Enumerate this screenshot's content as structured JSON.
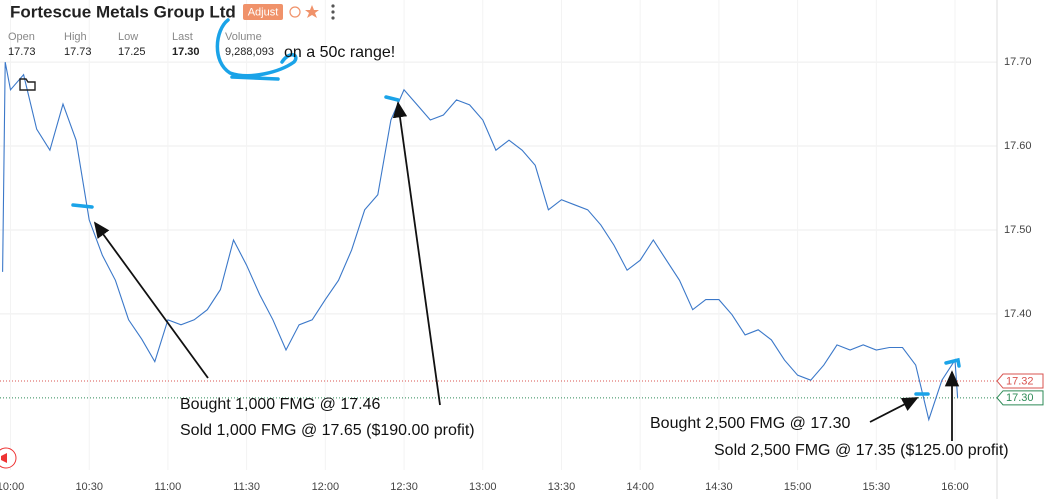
{
  "header": {
    "title": "Fortescue Metals Group Ltd",
    "button": "Adjust",
    "stats": [
      {
        "label": "Open",
        "value": "17.73"
      },
      {
        "label": "High",
        "value": "17.73"
      },
      {
        "label": "Low",
        "value": "17.25"
      },
      {
        "label": "Last",
        "value": "17.30"
      },
      {
        "label": "Volume",
        "value": "9,288,093"
      }
    ]
  },
  "chart_data": {
    "type": "line",
    "x": [
      "09:57",
      "09:58",
      "10:00",
      "10:05",
      "10:10",
      "10:15",
      "10:20",
      "10:25",
      "10:30",
      "10:35",
      "10:40",
      "10:45",
      "10:50",
      "10:55",
      "11:00",
      "11:05",
      "11:10",
      "11:15",
      "11:20",
      "11:25",
      "11:30",
      "11:35",
      "11:40",
      "11:45",
      "11:50",
      "11:55",
      "12:00",
      "12:05",
      "12:10",
      "12:15",
      "12:20",
      "12:25",
      "12:30",
      "12:35",
      "12:40",
      "12:45",
      "12:50",
      "12:55",
      "13:00",
      "13:05",
      "13:10",
      "13:15",
      "13:20",
      "13:25",
      "13:30",
      "13:35",
      "13:40",
      "13:45",
      "13:50",
      "13:55",
      "14:00",
      "14:05",
      "14:10",
      "14:15",
      "14:20",
      "14:25",
      "14:30",
      "14:35",
      "14:40",
      "14:45",
      "14:50",
      "14:55",
      "15:00",
      "15:05",
      "15:10",
      "15:15",
      "15:20",
      "15:25",
      "15:30",
      "15:35",
      "15:40",
      "15:45",
      "15:50",
      "15:55",
      "16:00",
      "16:01"
    ],
    "series": [
      {
        "name": "FMG",
        "color": "#3b78c9",
        "values": [
          17.45,
          17.7,
          17.667,
          17.685,
          17.62,
          17.595,
          17.65,
          17.607,
          17.512,
          17.47,
          17.44,
          17.393,
          17.37,
          17.343,
          17.393,
          17.387,
          17.393,
          17.405,
          17.429,
          17.488,
          17.458,
          17.423,
          17.393,
          17.357,
          17.387,
          17.393,
          17.417,
          17.44,
          17.476,
          17.524,
          17.542,
          17.631,
          17.667,
          17.649,
          17.631,
          17.637,
          17.655,
          17.649,
          17.631,
          17.595,
          17.607,
          17.595,
          17.577,
          17.524,
          17.536,
          17.53,
          17.524,
          17.506,
          17.482,
          17.452,
          17.464,
          17.488,
          17.464,
          17.44,
          17.405,
          17.417,
          17.417,
          17.399,
          17.375,
          17.381,
          17.369,
          17.345,
          17.327,
          17.321,
          17.339,
          17.363,
          17.357,
          17.363,
          17.357,
          17.36,
          17.36,
          17.339,
          17.274,
          17.321,
          17.345,
          17.3
        ]
      }
    ],
    "xlim": [
      "09:56",
      "16:16"
    ],
    "xticks": [
      "10:00",
      "10:30",
      "11:00",
      "11:30",
      "12:00",
      "12:30",
      "13:00",
      "13:30",
      "14:00",
      "14:30",
      "15:00",
      "15:30",
      "16:00"
    ],
    "ylim": [
      17.214,
      17.774
    ],
    "yticks": [
      {
        "value": 17.4,
        "label": "17.40"
      },
      {
        "value": 17.5,
        "label": "17.50"
      },
      {
        "value": 17.6,
        "label": "17.60"
      },
      {
        "value": 17.7,
        "label": "17.70"
      }
    ],
    "grid": true,
    "price_lines": [
      {
        "value": 17.32,
        "label": "17.32",
        "color": "#d9534f"
      },
      {
        "value": 17.3,
        "label": "17.30",
        "color": "#2e8b57"
      }
    ],
    "annotations": [
      "on a 50c range!",
      "Bought 1,000 FMG @ 17.46",
      "Sold 1,000 FMG @ 17.65 ($190.00 profit)",
      "Bought 2,500 FMG @ 17.30",
      "Sold 2,500 FMG @ 17.35 ($125.00 profit)"
    ]
  }
}
